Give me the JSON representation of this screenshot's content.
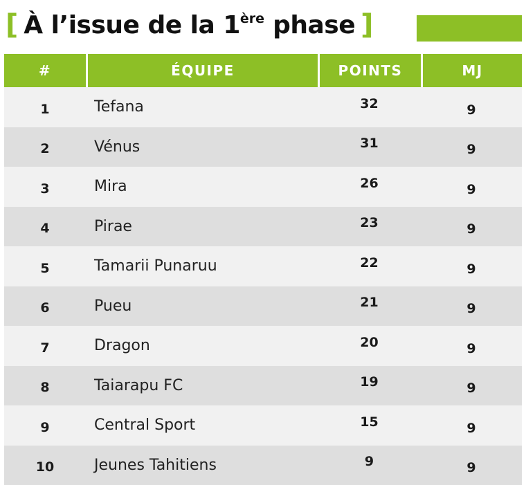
{
  "title": {
    "bracket_open": "[",
    "text_main": "À l’issue de la 1",
    "text_sup": "ère",
    "text_end": " phase",
    "bracket_close": "]"
  },
  "table": {
    "headers": [
      "#",
      "ÉQUIPE",
      "POINTS",
      "MJ"
    ],
    "rows": [
      {
        "rank": "1",
        "team": "Tefana",
        "points": "32",
        "mj": "9"
      },
      {
        "rank": "2",
        "team": "Vénus",
        "points": "31",
        "mj": "9"
      },
      {
        "rank": "3",
        "team": "Mira",
        "points": "26",
        "mj": "9"
      },
      {
        "rank": "4",
        "team": "Pirae",
        "points": "23",
        "mj": "9"
      },
      {
        "rank": "5",
        "team": "Tamarii Punaruu",
        "points": "22",
        "mj": "9"
      },
      {
        "rank": "6",
        "team": "Pueu",
        "points": "21",
        "mj": "9"
      },
      {
        "rank": "7",
        "team": "Dragon",
        "points": "20",
        "mj": "9"
      },
      {
        "rank": "8",
        "team": "Taiarapu FC",
        "points": "19",
        "mj": "9"
      },
      {
        "rank": "9",
        "team": "Central Sport",
        "points": "15",
        "mj": "9"
      },
      {
        "rank": "10",
        "team": "Jeunes Tahitiens",
        "points": "9",
        "mj": "9"
      }
    ]
  },
  "colors": {
    "accent_green": "#8dbf26",
    "row_light": "#f1f1f1",
    "row_dark": "#dedede",
    "text_dark": "#1a1a1a"
  }
}
